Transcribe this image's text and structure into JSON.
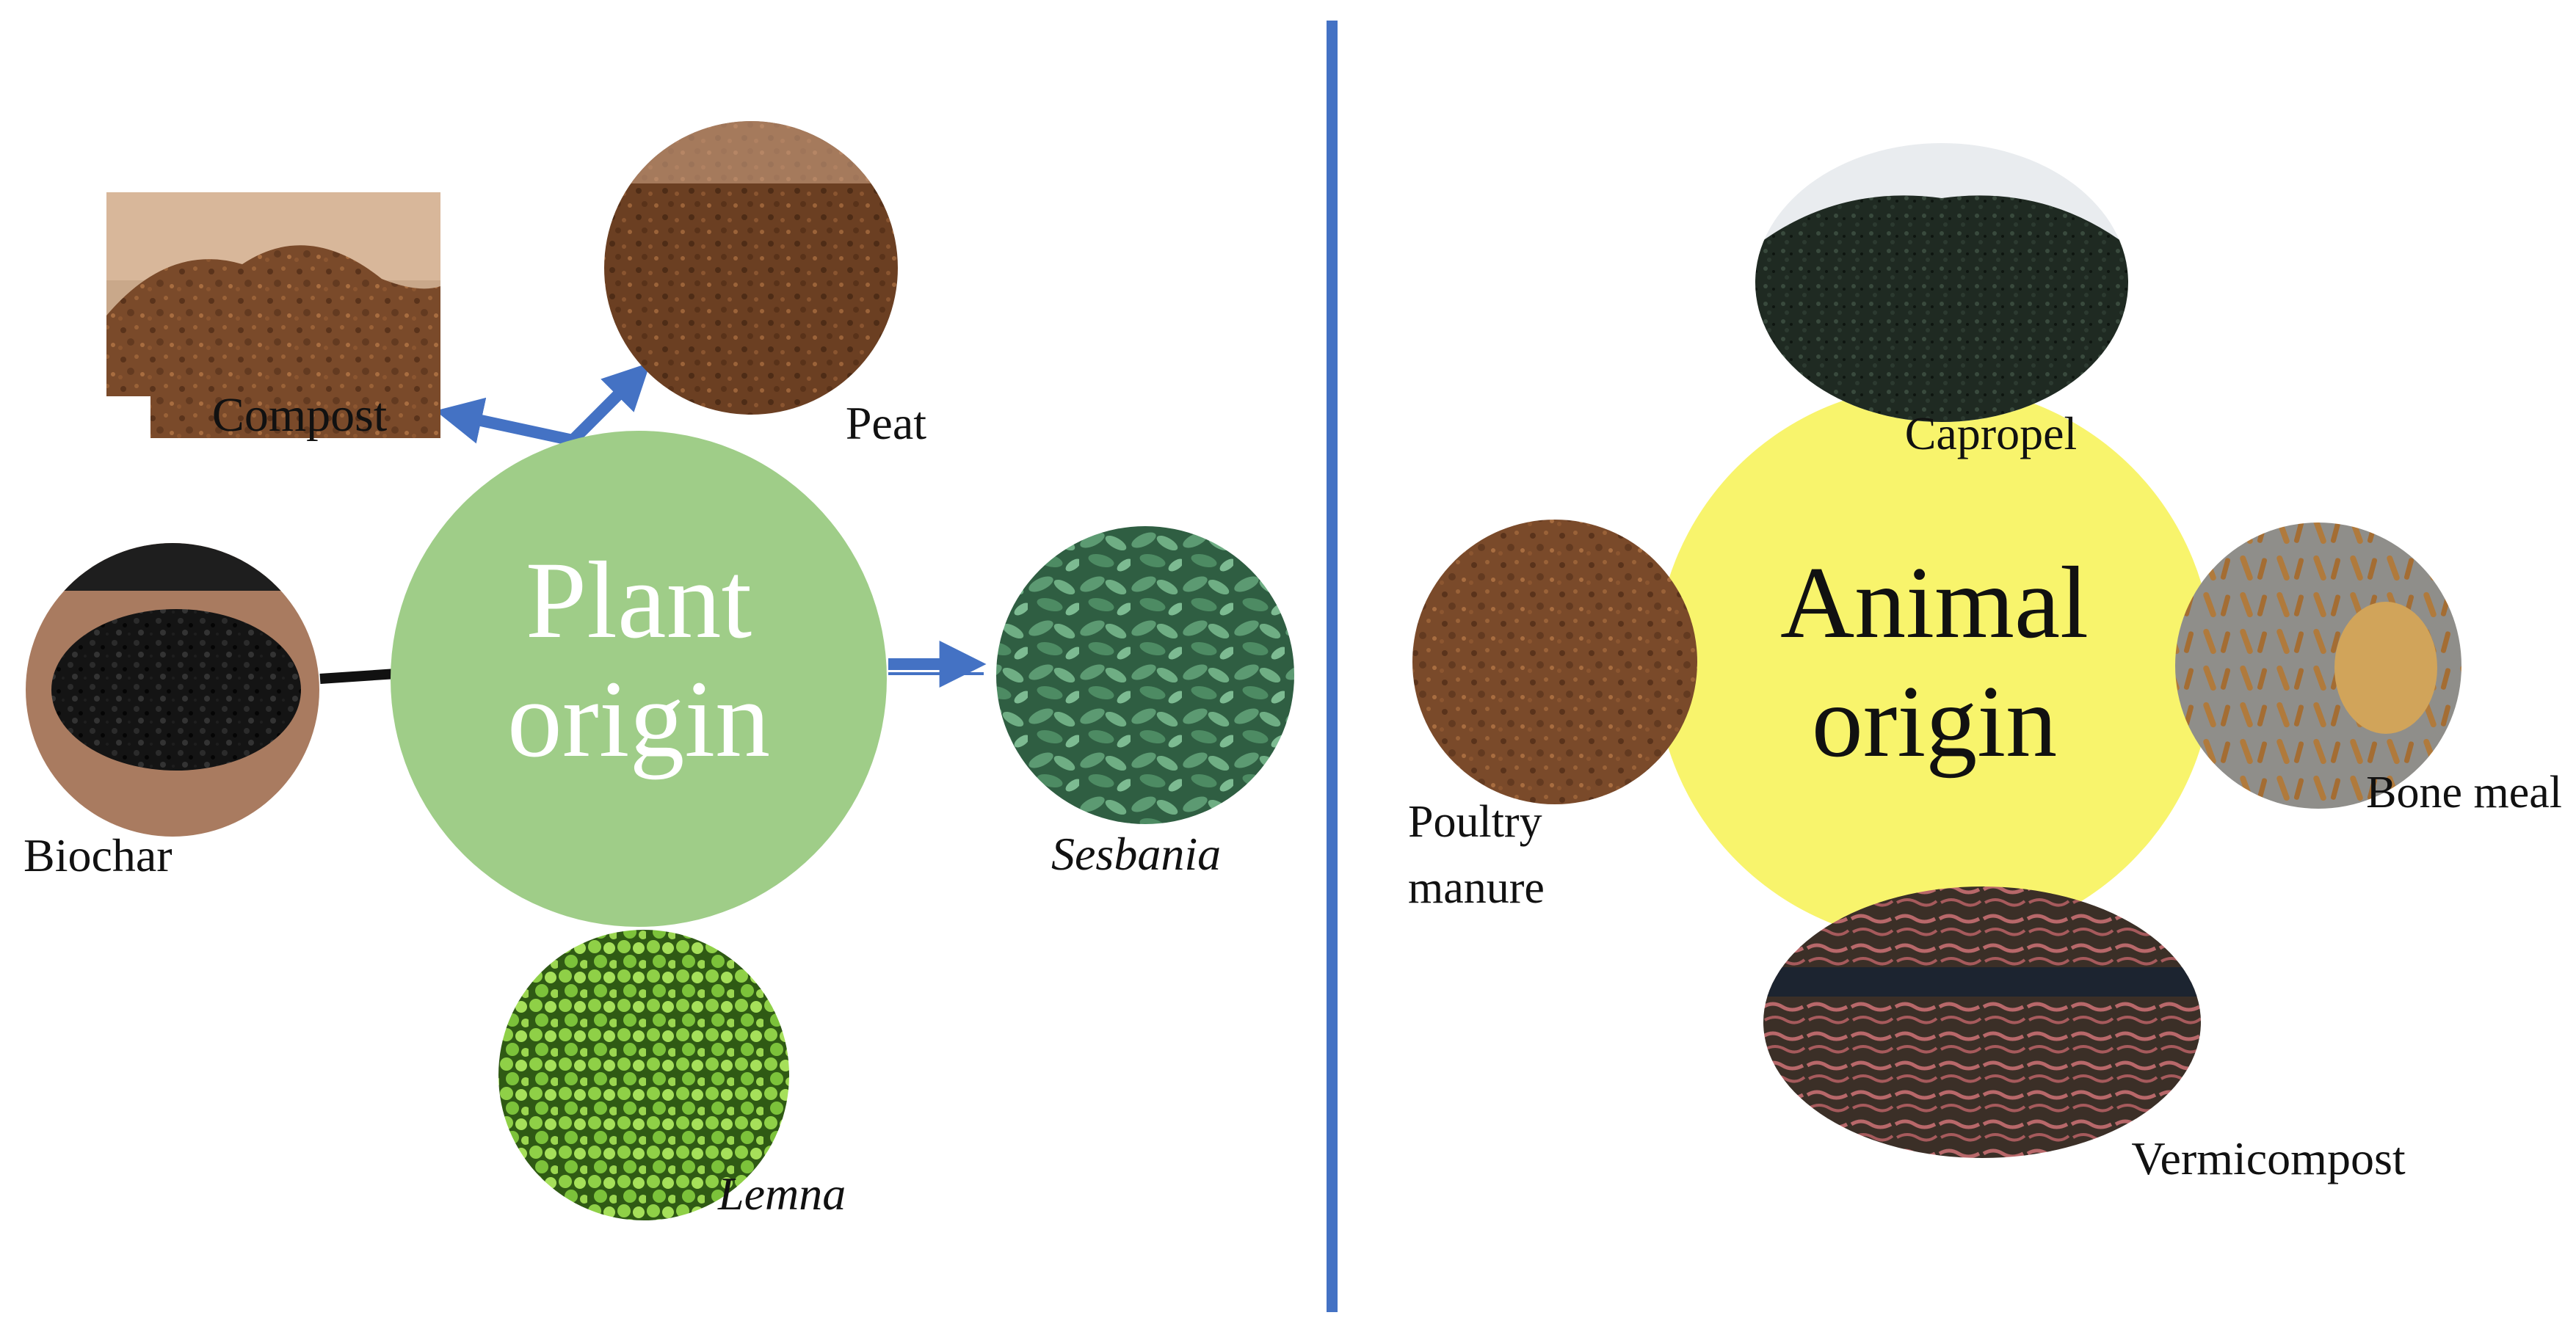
{
  "plant": {
    "hub_line1": "Plant",
    "hub_line2": "origin",
    "compost_label": "Compost",
    "peat_label": "Peat",
    "biochar_label": "Biochar",
    "sesbania_label": "Sesbania",
    "lemna_label": "Lemna",
    "hub_color": "#9fcd88",
    "arrow_color": "#4472c4"
  },
  "animal": {
    "hub_line1": "Animal",
    "hub_line2": "origin",
    "capropel_label": "Capropel",
    "bone_meal_label": "Bone meal",
    "poultry_line1": "Poultry",
    "poultry_line2": "manure",
    "vermicompost_label": "Vermicompost",
    "hub_color": "#f8f46c"
  },
  "divider_color": "#4472c4"
}
